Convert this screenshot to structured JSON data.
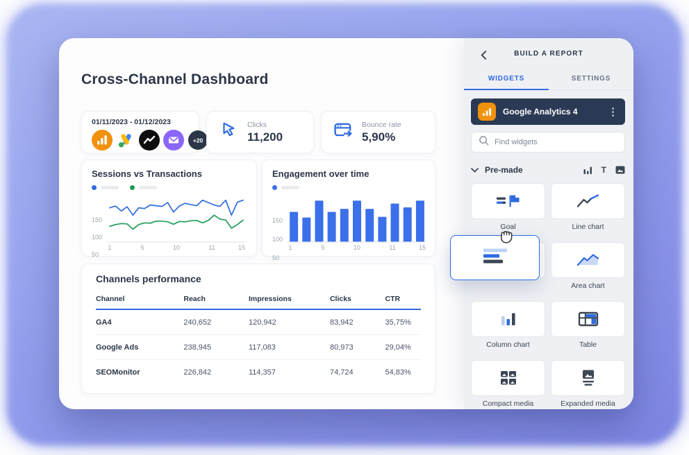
{
  "app": {
    "title": "Cross-Channel Dashboard"
  },
  "kpis": {
    "sources_card": {
      "date_range": "01/11/2023 - 01/12/2023",
      "sources": [
        "google-analytics",
        "google-ads",
        "trend-line",
        "campaign-monitor"
      ],
      "more_badge": "+20"
    },
    "clicks_card": {
      "icon": "cursor-icon",
      "label": "Clicks",
      "value": "11,200"
    },
    "bounce_card": {
      "icon": "bounce-window-icon",
      "label": "Bounce rate",
      "value": "5,90%"
    }
  },
  "chart_data": [
    {
      "type": "line",
      "title": "Sessions vs Transactions",
      "legend_position": "top-left",
      "legend_labels_visible": false,
      "yticks": [
        150,
        100,
        50
      ],
      "xticks": [
        "1",
        "5",
        "10",
        "11",
        "15"
      ],
      "ylim": [
        50,
        185
      ],
      "grid": false,
      "series": [
        {
          "name": "sessions",
          "color": "#2f6be0",
          "values": [
            148,
            153,
            139,
            151,
            127,
            148,
            146,
            156,
            154,
            152,
            163,
            136,
            153,
            161,
            157,
            154,
            170,
            163,
            156,
            152,
            170,
            127,
            164,
            170
          ]
        },
        {
          "name": "transactions",
          "color": "#1f9d58",
          "values": [
            95,
            100,
            103,
            102,
            87,
            100,
            105,
            104,
            110,
            110,
            108,
            101,
            109,
            108,
            111,
            112,
            105,
            112,
            127,
            116,
            113,
            90,
            100,
            113
          ]
        }
      ]
    },
    {
      "type": "bar",
      "title": "Engagement over time",
      "legend_position": "top-left",
      "legend_labels_visible": false,
      "color": "#3b70ea",
      "yticks": [
        150,
        100,
        50
      ],
      "xticks": [
        "1",
        "5",
        "10",
        "11",
        "15"
      ],
      "ylim": [
        60,
        185
      ],
      "grid": false,
      "values": [
        140,
        125,
        170,
        140,
        148,
        170,
        148,
        127,
        162,
        152,
        170
      ]
    }
  ],
  "table": {
    "title": "Channels performance",
    "headers": [
      "Channel",
      "Reach",
      "Impressions",
      "Clicks",
      "CTR"
    ],
    "rows": [
      [
        "GA4",
        "240,652",
        "120,942",
        "83,942",
        "35,75%"
      ],
      [
        "Google Ads",
        "238,945",
        "117,083",
        "80,973",
        "29,04%"
      ],
      [
        "SEOMonitor",
        "226,842",
        "114,357",
        "74,724",
        "54,83%"
      ]
    ]
  },
  "panel": {
    "title": "BUILD A REPORT",
    "tabs": [
      {
        "label": "WIDGETS",
        "active": true
      },
      {
        "label": "SETTINGS",
        "active": false
      }
    ],
    "source": {
      "name": "Google Analytics 4",
      "icon": "google-analytics-icon"
    },
    "search_placeholder": "Find widgets",
    "section_label": "Pre-made",
    "category_icons": [
      "column-chart-icon",
      "text-icon",
      "media-icon"
    ],
    "widgets": [
      {
        "label": "Goal",
        "icon": "goal"
      },
      {
        "label": "Line chart",
        "icon": "line-chart"
      },
      {
        "label": "",
        "icon": ""
      },
      {
        "label": "Area chart",
        "icon": "area-chart"
      },
      {
        "label": "Column chart",
        "icon": "column-chart"
      },
      {
        "label": "Table",
        "icon": "table"
      },
      {
        "label": "Compact media",
        "icon": "compact-media"
      },
      {
        "label": "Expanded media",
        "icon": "expanded-media"
      }
    ],
    "drag_widget": {
      "icon": "bar-chart"
    }
  },
  "colors": {
    "accent": "#2f6be0",
    "bar_blue": "#3b70ea",
    "green": "#1f9d58",
    "orange": "#f2910d",
    "dark_navy": "#2b3a54",
    "panel_bg": "#eef0f3"
  }
}
